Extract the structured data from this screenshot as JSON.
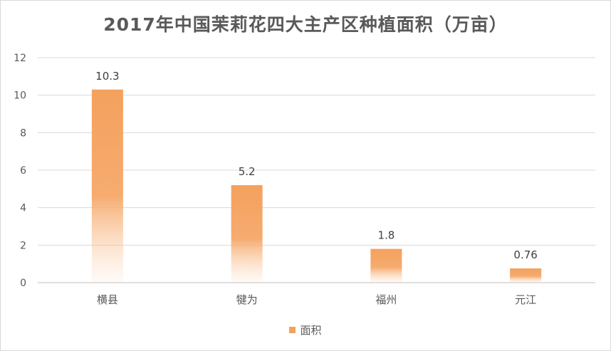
{
  "chart_data": {
    "type": "bar",
    "title": "2017年中国茉莉花四大主产区种植面积（万亩）",
    "categories": [
      "横县",
      "犍为",
      "福州",
      "元江"
    ],
    "series": [
      {
        "name": "面积",
        "values": [
          10.3,
          5.2,
          1.8,
          0.76
        ],
        "labels": [
          "10.3",
          "5.2",
          "1.8",
          "0.76"
        ]
      }
    ],
    "ylim": [
      0,
      12
    ],
    "yticks": [
      0,
      2,
      4,
      6,
      8,
      10,
      12
    ],
    "grid": true,
    "legend_position": "bottom",
    "bar_color": "#f4a15d"
  }
}
